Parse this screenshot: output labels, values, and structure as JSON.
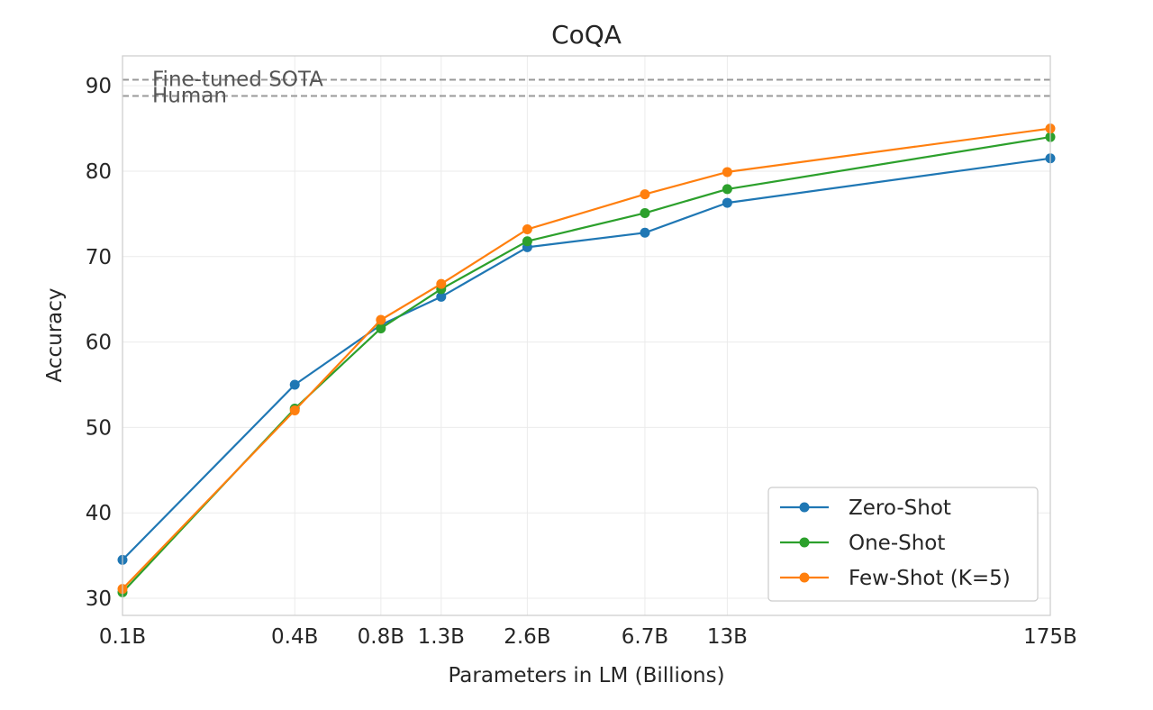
{
  "chart_data": {
    "type": "line",
    "title": "CoQA",
    "xlabel": "Parameters in LM (Billions)",
    "ylabel": "Accuracy",
    "categories": [
      "0.1B",
      "0.4B",
      "0.8B",
      "1.3B",
      "2.6B",
      "6.7B",
      "13B",
      "175B"
    ],
    "x": [
      0.1,
      0.4,
      0.8,
      1.3,
      2.6,
      6.7,
      13,
      175
    ],
    "x_scale": "log",
    "ylim": [
      28,
      93.5
    ],
    "yticks": [
      30,
      40,
      50,
      60,
      70,
      80,
      90
    ],
    "grid": true,
    "legend_position": "lower-right",
    "series": [
      {
        "name": "Zero-Shot",
        "color": "#1f77b4",
        "values": [
          34.5,
          55.0,
          62.0,
          65.3,
          71.1,
          72.8,
          76.3,
          81.5
        ]
      },
      {
        "name": "One-Shot",
        "color": "#2ca02c",
        "values": [
          30.7,
          52.2,
          61.6,
          66.2,
          71.8,
          75.1,
          77.9,
          84.0
        ]
      },
      {
        "name": "Few-Shot (K=5)",
        "color": "#ff7f0e",
        "values": [
          31.1,
          52.0,
          62.6,
          66.8,
          73.2,
          77.3,
          79.9,
          85.0
        ]
      }
    ],
    "reference_lines": [
      {
        "label": "Fine-tuned SOTA",
        "value": 90.7,
        "color": "#999999"
      },
      {
        "label": "Human",
        "value": 88.8,
        "color": "#999999"
      }
    ]
  }
}
